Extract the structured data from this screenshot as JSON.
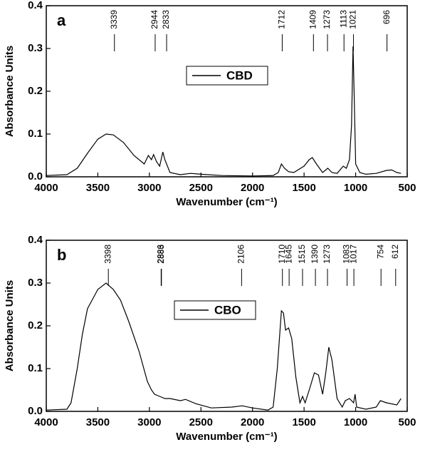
{
  "chart_data": [
    {
      "type": "line",
      "panel": "a",
      "xlabel": "Wavenumber (cm⁻¹)",
      "ylabel": "Absorbance Units",
      "xlim": [
        4000,
        500
      ],
      "xticks": [
        4000,
        3500,
        3000,
        2500,
        2000,
        1500,
        1000,
        500
      ],
      "ylim": [
        0,
        0.4
      ],
      "yticks": [
        {
          "value": 0,
          "label": "0.0"
        },
        0.1,
        0.2,
        0.3,
        0.4
      ],
      "peaks": [
        3339,
        2944,
        2833,
        1712,
        1409,
        1273,
        1113,
        1021,
        696
      ],
      "x": [
        4000,
        3800,
        3700,
        3600,
        3500,
        3420,
        3350,
        3250,
        3150,
        3050,
        3010,
        2980,
        2960,
        2930,
        2900,
        2870,
        2850,
        2800,
        2700,
        2600,
        2500,
        2300,
        2000,
        1800,
        1750,
        1720,
        1690,
        1650,
        1600,
        1500,
        1450,
        1420,
        1380,
        1320,
        1270,
        1230,
        1180,
        1120,
        1090,
        1060,
        1040,
        1025,
        1015,
        1000,
        960,
        900,
        800,
        700,
        650,
        600,
        560
      ],
      "series": [
        {
          "name": "CBD",
          "color": "#000000",
          "values": [
            0.003,
            0.005,
            0.02,
            0.055,
            0.088,
            0.1,
            0.098,
            0.08,
            0.05,
            0.03,
            0.05,
            0.04,
            0.052,
            0.035,
            0.025,
            0.058,
            0.04,
            0.01,
            0.005,
            0.008,
            0.006,
            0.003,
            0.002,
            0.003,
            0.01,
            0.03,
            0.02,
            0.012,
            0.01,
            0.025,
            0.04,
            0.045,
            0.03,
            0.01,
            0.02,
            0.01,
            0.008,
            0.025,
            0.02,
            0.04,
            0.12,
            0.305,
            0.2,
            0.03,
            0.01,
            0.006,
            0.008,
            0.015,
            0.016,
            0.01,
            0.008
          ]
        }
      ]
    },
    {
      "type": "line",
      "panel": "b",
      "xlabel": "Wavenumber (cm⁻¹)",
      "ylabel": "Absorbance Units",
      "xlim": [
        4000,
        500
      ],
      "xticks": [
        4000,
        3500,
        3000,
        2500,
        2000,
        1500,
        1000,
        500
      ],
      "ylim": [
        0,
        0.4
      ],
      "yticks": [
        {
          "value": 0,
          "label": "0.0"
        },
        0.1,
        0.2,
        0.3,
        0.4
      ],
      "peaks": [
        3398,
        2883,
        2886,
        2106,
        1710,
        1645,
        1515,
        1390,
        1273,
        1083,
        1017,
        754,
        612
      ],
      "x": [
        4000,
        3800,
        3760,
        3700,
        3650,
        3600,
        3500,
        3420,
        3350,
        3280,
        3200,
        3100,
        3020,
        2980,
        2950,
        2900,
        2850,
        2800,
        2700,
        2650,
        2550,
        2400,
        2200,
        2100,
        2000,
        1850,
        1800,
        1760,
        1720,
        1700,
        1680,
        1650,
        1620,
        1580,
        1540,
        1515,
        1490,
        1450,
        1400,
        1360,
        1320,
        1290,
        1260,
        1230,
        1180,
        1130,
        1100,
        1060,
        1020,
        1005,
        990,
        900,
        800,
        760,
        700,
        600,
        560
      ],
      "series": [
        {
          "name": "CBO",
          "color": "#000000",
          "values": [
            0.003,
            0.005,
            0.02,
            0.1,
            0.18,
            0.24,
            0.285,
            0.3,
            0.285,
            0.26,
            0.21,
            0.14,
            0.07,
            0.05,
            0.04,
            0.035,
            0.03,
            0.03,
            0.025,
            0.028,
            0.018,
            0.008,
            0.01,
            0.013,
            0.008,
            0.003,
            0.01,
            0.1,
            0.235,
            0.23,
            0.19,
            0.195,
            0.17,
            0.08,
            0.02,
            0.035,
            0.02,
            0.05,
            0.09,
            0.085,
            0.04,
            0.09,
            0.15,
            0.12,
            0.03,
            0.01,
            0.025,
            0.03,
            0.02,
            0.04,
            0.01,
            0.005,
            0.01,
            0.025,
            0.02,
            0.015,
            0.03
          ]
        }
      ]
    }
  ]
}
